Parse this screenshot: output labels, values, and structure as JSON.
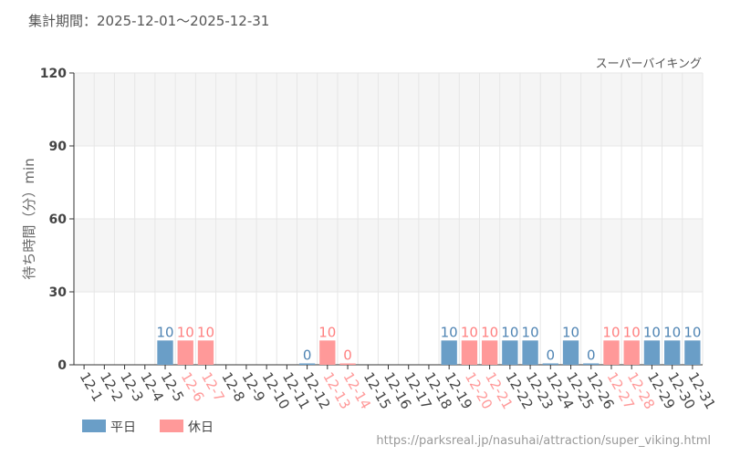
{
  "chart_data": {
    "type": "bar",
    "title": "集計期間：2025-12-01～2025-12-31",
    "subtitle": "スーパーバイキング",
    "ylabel": "待ち時間（分）min",
    "xlabel": "",
    "ylim": [
      0,
      120
    ],
    "yticks": [
      0,
      30,
      60,
      90,
      120
    ],
    "categories": [
      "12-1",
      "12-2",
      "12-3",
      "12-4",
      "12-5",
      "12-6",
      "12-7",
      "12-8",
      "12-9",
      "12-10",
      "12-11",
      "12-12",
      "12-13",
      "12-14",
      "12-15",
      "12-16",
      "12-17",
      "12-18",
      "12-19",
      "12-20",
      "12-21",
      "12-22",
      "12-23",
      "12-24",
      "12-25",
      "12-26",
      "12-27",
      "12-28",
      "12-29",
      "12-30",
      "12-31"
    ],
    "holiday": [
      false,
      false,
      false,
      false,
      false,
      true,
      true,
      false,
      false,
      false,
      false,
      false,
      true,
      true,
      false,
      false,
      false,
      false,
      false,
      true,
      true,
      false,
      false,
      false,
      false,
      false,
      true,
      true,
      false,
      false,
      false
    ],
    "values": [
      null,
      null,
      null,
      null,
      10,
      10,
      10,
      null,
      null,
      null,
      null,
      0,
      10,
      0,
      null,
      null,
      null,
      null,
      10,
      10,
      10,
      10,
      10,
      0,
      10,
      0,
      10,
      10,
      10,
      10,
      10
    ],
    "legend": [
      {
        "name": "平日",
        "color": "#6a9ec7"
      },
      {
        "name": "休日",
        "color": "#ff9999"
      }
    ],
    "legend_position": "bottom-left",
    "colors": {
      "weekday": "#6a9ec7",
      "holiday": "#ff9999",
      "weekday_label": "#4f84b3",
      "holiday_label": "#ff8080"
    }
  },
  "source_url": "https://parksreal.jp/nasuhai/attraction/super_viking.html"
}
